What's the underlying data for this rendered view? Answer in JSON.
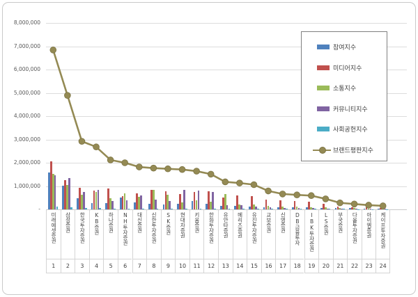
{
  "window": {
    "background": "#ffffff",
    "frame_border": "#c9c9c9"
  },
  "axes": {
    "y_tick_labels": [
      "8,000,000",
      "7,000,000",
      "6,000,000",
      "5,000,000",
      "4,000,000",
      "3,000,000",
      "2,000,000",
      "1,000,000",
      "-"
    ],
    "grid_color": "#dcdcdc",
    "text_color": "#595959"
  },
  "chart_data": {
    "type": "bar",
    "subtype": "grouped bars with line overlay (brand reputation index chart)",
    "title": "",
    "xlabel": "",
    "ylabel": "",
    "ylim": [
      0,
      8000000
    ],
    "y_ticks": [
      0,
      1000000,
      2000000,
      3000000,
      4000000,
      5000000,
      6000000,
      7000000,
      8000000
    ],
    "grid": true,
    "legend_position": "inside upper right",
    "categories": [
      "미래에셋증권",
      "삼성증권",
      "한국투자증권",
      "KB증권",
      "하나증권",
      "NH투자증권",
      "대신증권",
      "신한투자증권",
      "SK증권",
      "현대차증권",
      "키움증권",
      "한화투자증권",
      "유안타증권",
      "메리츠증권",
      "유진투자증권",
      "교보증권",
      "신영증권",
      "DB금융투자",
      "IBK투자증권",
      "LS증권",
      "부국증권",
      "다올투자증권",
      "아이엠증권",
      "케이프투자증권"
    ],
    "ranks": [
      "1",
      "2",
      "3",
      "4",
      "5",
      "6",
      "7",
      "8",
      "9",
      "10",
      "11",
      "12",
      "13",
      "14",
      "15",
      "16",
      "17",
      "18",
      "19",
      "20",
      "21",
      "22",
      "23",
      "24"
    ],
    "series": [
      {
        "name": "참여지수",
        "kind": "bar",
        "color": "#4F81BD",
        "values": [
          1570000,
          1020000,
          480000,
          270000,
          280000,
          520000,
          300000,
          250000,
          200000,
          250000,
          350000,
          230000,
          150000,
          160000,
          120000,
          100000,
          80000,
          80000,
          100000,
          70000,
          50000,
          60000,
          40000,
          40000
        ]
      },
      {
        "name": "미디어지수",
        "kind": "bar",
        "color": "#C0504D",
        "values": [
          2060000,
          1240000,
          920000,
          820000,
          900000,
          560000,
          680000,
          850000,
          780000,
          650000,
          750000,
          780000,
          500000,
          600000,
          580000,
          420000,
          380000,
          350000,
          320000,
          250000,
          120000,
          100000,
          80000,
          60000
        ]
      },
      {
        "name": "소통지수",
        "kind": "bar",
        "color": "#9BBB59",
        "values": [
          1510000,
          1050000,
          640000,
          760000,
          480000,
          700000,
          550000,
          850000,
          620000,
          300000,
          400000,
          320000,
          650000,
          200000,
          220000,
          150000,
          120000,
          120000,
          100000,
          80000,
          60000,
          50000,
          40000,
          30000
        ]
      },
      {
        "name": "커뮤니티지수",
        "kind": "bar",
        "color": "#8064A2",
        "values": [
          1470000,
          1330000,
          760000,
          840000,
          350000,
          380000,
          600000,
          420000,
          350000,
          850000,
          820000,
          750000,
          180000,
          170000,
          120000,
          100000,
          60000,
          50000,
          50000,
          30000,
          30000,
          20000,
          20000,
          20000
        ]
      },
      {
        "name": "사회공헌지수",
        "kind": "bar",
        "color": "#4BACC6",
        "values": [
          120000,
          80000,
          70000,
          50000,
          40000,
          40000,
          30000,
          30000,
          30000,
          30000,
          30000,
          30000,
          30000,
          30000,
          30000,
          20000,
          20000,
          20000,
          20000,
          20000,
          20000,
          10000,
          10000,
          10000
        ]
      },
      {
        "name": "브랜드평판지수",
        "kind": "line",
        "color": "#948A54",
        "marker_edge": "#7c7444",
        "values": [
          6840000,
          4890000,
          2920000,
          2680000,
          2120000,
          2000000,
          1820000,
          1770000,
          1740000,
          1710000,
          1640000,
          1510000,
          1180000,
          1130000,
          1060000,
          790000,
          660000,
          620000,
          590000,
          450000,
          280000,
          230000,
          180000,
          150000
        ]
      }
    ]
  }
}
